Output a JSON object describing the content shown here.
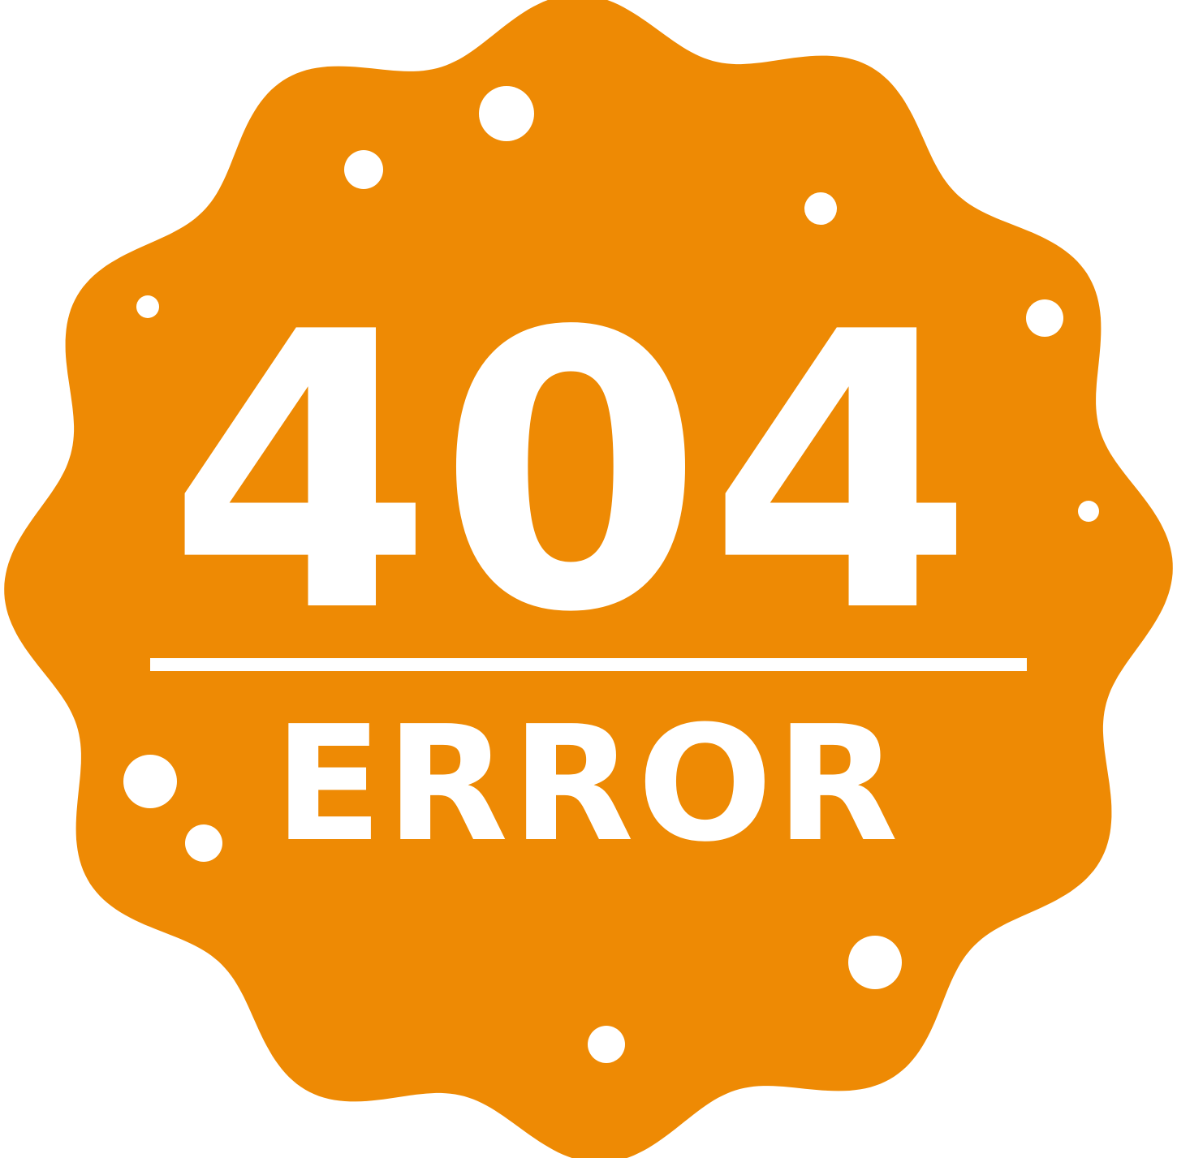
{
  "badge": {
    "code": "404",
    "label": "ERROR"
  },
  "colors": {
    "badge_fill": "#EE8A04",
    "foreground": "#FFFFFF",
    "background": "#FFFFFF"
  },
  "icons": {
    "badge_shape": "scalloped-badge-icon",
    "decoration": "dot-icon"
  }
}
